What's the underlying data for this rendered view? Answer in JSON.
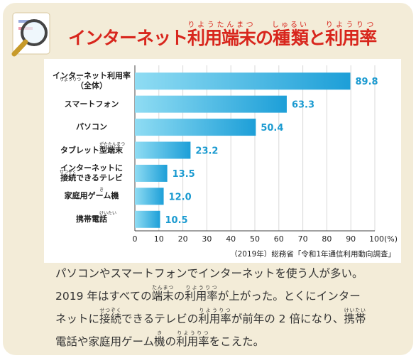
{
  "header": {
    "title": [
      "インターネット",
      {
        "base": "利用端末",
        "ruby": "りようたんまつ"
      },
      "の",
      {
        "base": "種類",
        "ruby": "しゅるい"
      },
      "と",
      {
        "base": "利用率",
        "ruby": "りようりつ"
      }
    ]
  },
  "chart_data": {
    "type": "bar",
    "orientation": "horizontal",
    "categories": [
      "インターネット利用率\n（全体）",
      "スマートフォン",
      "パソコン",
      "タブレット型端末",
      "インターネットに\n接続できるテレビ",
      "家庭用ゲーム機",
      "携帯電話"
    ],
    "category_ruby": [
      "りようりつ",
      null,
      null,
      "がたたんまつ",
      "せつぞく",
      "き",
      "けいたい"
    ],
    "values": [
      89.8,
      63.3,
      50.4,
      23.2,
      13.5,
      12.0,
      10.5
    ],
    "value_labels": [
      "89.8",
      "63.3",
      "50.4",
      "23.2",
      "13.5",
      "12.0",
      "10.5"
    ],
    "color": "#1d9fd8",
    "xlim": [
      0,
      100
    ],
    "xticks": [
      0,
      10,
      20,
      30,
      40,
      50,
      60,
      70,
      80,
      90,
      {
        "value": 100,
        "label": "100(%)"
      }
    ],
    "grid": true,
    "source": "（2019年）総務省「令和1年通信利用動向調査」"
  },
  "body": {
    "lines": [
      [
        "パソコンやスマートフォンでインターネットを使う人が多い。"
      ],
      [
        "2019 年はすべての",
        {
          "base": "端末",
          "ruby": "たんまつ"
        },
        "の",
        {
          "base": "利用率",
          "ruby": "りようりつ"
        },
        "が上がった。とくにインター"
      ],
      [
        "ネットに",
        {
          "base": "接続",
          "ruby": "せつぞく"
        },
        "できるテレビの",
        {
          "base": "利用率",
          "ruby": "りようりつ"
        },
        "が前年の 2 倍になり、",
        {
          "base": "携帯",
          "ruby": "けいたい"
        }
      ],
      [
        "電話や家庭用ゲーム",
        {
          "base": "機",
          "ruby": "き"
        },
        "の",
        {
          "base": "利用率",
          "ruby": "りようりつ"
        },
        "をこえた。"
      ]
    ]
  }
}
